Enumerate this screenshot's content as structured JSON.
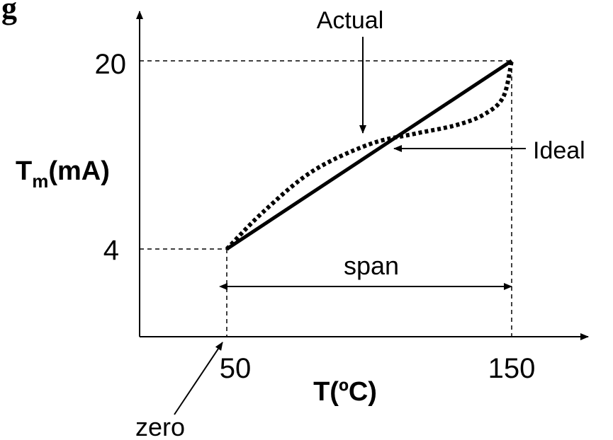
{
  "chart_data": {
    "type": "line",
    "ylabel": {
      "main": "T",
      "sub": "m",
      "unit": "(mA)"
    },
    "xlabel": "T(ºC)",
    "yticks": [
      {
        "value": 4,
        "label": "4"
      },
      {
        "value": 20,
        "label": "20"
      }
    ],
    "xticks": [
      {
        "value": 50,
        "label": "50"
      },
      {
        "value": 150,
        "label": "150"
      }
    ],
    "series": [
      {
        "name": "Ideal",
        "style": "solid",
        "points": [
          [
            50,
            4
          ],
          [
            150,
            20
          ]
        ]
      },
      {
        "name": "Actual",
        "style": "dotted",
        "points": [
          [
            50,
            4
          ],
          [
            63,
            7.2
          ],
          [
            80,
            10.6
          ],
          [
            100,
            12.9
          ],
          [
            116,
            13.8
          ],
          [
            130,
            14.5
          ],
          [
            140,
            15.4
          ],
          [
            147,
            16.9
          ],
          [
            150,
            20
          ]
        ]
      }
    ],
    "annotations": {
      "actual": "Actual",
      "ideal": "Ideal",
      "span": "span",
      "zero": "zero",
      "corner_glyph": "g"
    }
  }
}
